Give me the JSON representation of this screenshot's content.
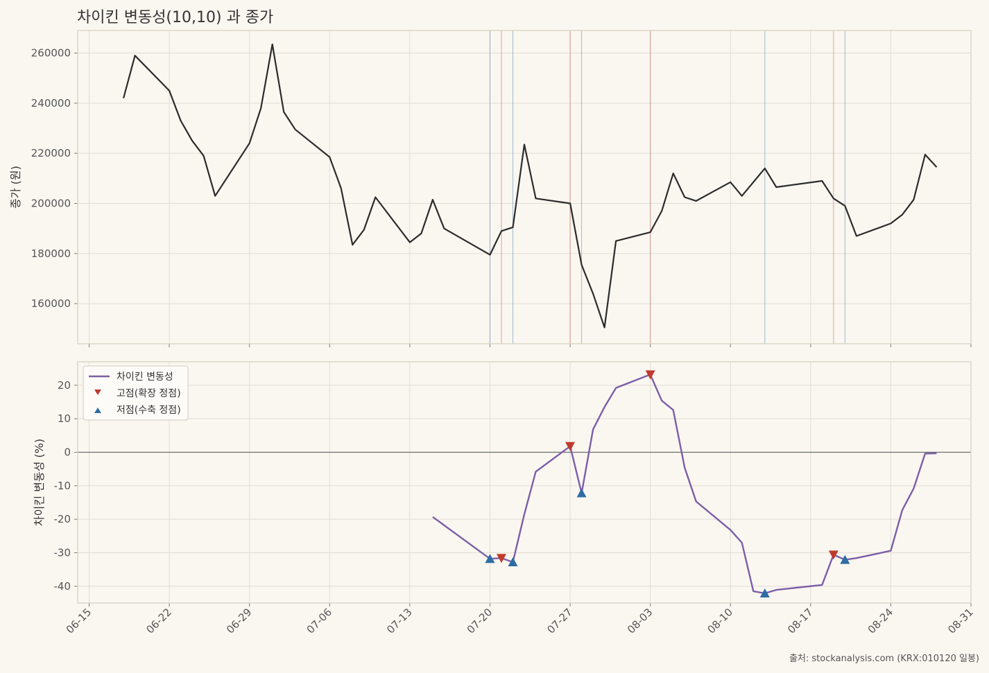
{
  "title": "차이킨 변동성(10,10) 과 종가",
  "source": "출처: stockanalysis.com (KRX:010120 일봉)",
  "colors": {
    "price_line": "#2b2b2b",
    "volatility_line": "#7b5ea7",
    "peak_marker": "#c0392b",
    "trough_marker": "#2e6da4",
    "background": "#faf7f1",
    "panel_bg": "#faf7f1",
    "grid": "#e2ddd2",
    "frame": "#d8d2c2"
  },
  "chart_data": [
    {
      "type": "line",
      "ylabel": "종가 (원)",
      "ylim": [
        144000,
        269000
      ],
      "yticks": [
        160000,
        180000,
        200000,
        220000,
        240000,
        260000
      ],
      "xlim": [
        "2025-06-14",
        "2025-08-31"
      ],
      "grid": true,
      "series": [
        {
          "name": "종가",
          "points": [
            [
              "2025-06-18",
              242000
            ],
            [
              "2025-06-19",
              259000
            ],
            [
              "2025-06-22",
              245000
            ],
            [
              "2025-06-23",
              233000
            ],
            [
              "2025-06-24",
              225000
            ],
            [
              "2025-06-25",
              219000
            ],
            [
              "2025-06-26",
              203000
            ],
            [
              "2025-06-29",
              224000
            ],
            [
              "2025-06-30",
              238000
            ],
            [
              "2025-07-01",
              263500
            ],
            [
              "2025-07-02",
              236500
            ],
            [
              "2025-07-03",
              229500
            ],
            [
              "2025-07-06",
              218500
            ],
            [
              "2025-07-07",
              206000
            ],
            [
              "2025-07-08",
              183500
            ],
            [
              "2025-07-09",
              189500
            ],
            [
              "2025-07-10",
              202500
            ],
            [
              "2025-07-13",
              184500
            ],
            [
              "2025-07-14",
              188000
            ],
            [
              "2025-07-15",
              201500
            ],
            [
              "2025-07-16",
              190000
            ],
            [
              "2025-07-20",
              179500
            ],
            [
              "2025-07-21",
              189000
            ],
            [
              "2025-07-22",
              190500
            ],
            [
              "2025-07-23",
              223500
            ],
            [
              "2025-07-24",
              202000
            ],
            [
              "2025-07-27",
              200000
            ],
            [
              "2025-07-28",
              175500
            ],
            [
              "2025-07-29",
              164000
            ],
            [
              "2025-07-30",
              150500
            ],
            [
              "2025-07-31",
              185000
            ],
            [
              "2025-08-03",
              188500
            ],
            [
              "2025-08-04",
              197000
            ],
            [
              "2025-08-05",
              212000
            ],
            [
              "2025-08-06",
              202500
            ],
            [
              "2025-08-07",
              201000
            ],
            [
              "2025-08-10",
              208500
            ],
            [
              "2025-08-11",
              203000
            ],
            [
              "2025-08-13",
              214000
            ],
            [
              "2025-08-14",
              206500
            ],
            [
              "2025-08-18",
              209000
            ],
            [
              "2025-08-19",
              202000
            ],
            [
              "2025-08-20",
              199000
            ],
            [
              "2025-08-21",
              187000
            ],
            [
              "2025-08-24",
              192000
            ],
            [
              "2025-08-25",
              195500
            ],
            [
              "2025-08-26",
              201500
            ],
            [
              "2025-08-27",
              219500
            ],
            [
              "2025-08-28",
              214500
            ]
          ]
        }
      ],
      "vlines": {
        "peaks": [
          "2025-07-21",
          "2025-07-27",
          "2025-08-03",
          "2025-08-19"
        ],
        "troughs": [
          "2025-07-20",
          "2025-07-22",
          "2025-07-28",
          "2025-08-13",
          "2025-08-20"
        ]
      }
    },
    {
      "type": "line",
      "ylabel": "차이킨 변동성 (%)",
      "ylim": [
        -45,
        27
      ],
      "yticks": [
        -40,
        -30,
        -20,
        -10,
        0,
        10,
        20
      ],
      "xlim": [
        "2025-06-14",
        "2025-08-31"
      ],
      "xticks": [
        "06-15",
        "06-22",
        "06-29",
        "07-06",
        "07-13",
        "07-20",
        "07-27",
        "08-03",
        "08-10",
        "08-17",
        "08-24",
        "08-31"
      ],
      "zero_line": true,
      "grid": true,
      "legend": {
        "position": "top-left",
        "entries": [
          "차이킨 변동성",
          "고점(확장 정점)",
          "저점(수축 정점)"
        ]
      },
      "series": [
        {
          "name": "차이킨 변동성",
          "points": [
            [
              "2025-07-15",
              -19.3
            ],
            [
              "2025-07-20",
              -31.8
            ],
            [
              "2025-07-21",
              -31.6
            ],
            [
              "2025-07-22",
              -32.8
            ],
            [
              "2025-07-23",
              -18.5
            ],
            [
              "2025-07-24",
              -5.8
            ],
            [
              "2025-07-27",
              1.8
            ],
            [
              "2025-07-28",
              -12.2
            ],
            [
              "2025-07-29",
              6.8
            ],
            [
              "2025-07-30",
              13.5
            ],
            [
              "2025-07-31",
              19.2
            ],
            [
              "2025-08-03",
              23.2
            ],
            [
              "2025-08-04",
              15.4
            ],
            [
              "2025-08-05",
              12.6
            ],
            [
              "2025-08-06",
              -4.6
            ],
            [
              "2025-08-07",
              -14.7
            ],
            [
              "2025-08-10",
              -23.2
            ],
            [
              "2025-08-11",
              -27.0
            ],
            [
              "2025-08-12",
              -41.5
            ],
            [
              "2025-08-13",
              -42.1
            ],
            [
              "2025-08-14",
              -41.1
            ],
            [
              "2025-08-18",
              -39.6
            ],
            [
              "2025-08-19",
              -30.6
            ],
            [
              "2025-08-20",
              -32.1
            ],
            [
              "2025-08-21",
              -31.6
            ],
            [
              "2025-08-24",
              -29.4
            ],
            [
              "2025-08-25",
              -17.3
            ],
            [
              "2025-08-26",
              -10.8
            ],
            [
              "2025-08-27",
              -0.4
            ],
            [
              "2025-08-28",
              -0.3
            ]
          ]
        },
        {
          "name": "고점(확장 정점)",
          "points": [
            [
              "2025-07-21",
              -31.6
            ],
            [
              "2025-07-27",
              1.8
            ],
            [
              "2025-08-03",
              23.2
            ],
            [
              "2025-08-19",
              -30.6
            ]
          ]
        },
        {
          "name": "저점(수축 정점)",
          "points": [
            [
              "2025-07-20",
              -31.8
            ],
            [
              "2025-07-22",
              -32.8
            ],
            [
              "2025-07-28",
              -12.2
            ],
            [
              "2025-08-13",
              -42.1
            ],
            [
              "2025-08-20",
              -32.1
            ]
          ]
        }
      ]
    }
  ]
}
